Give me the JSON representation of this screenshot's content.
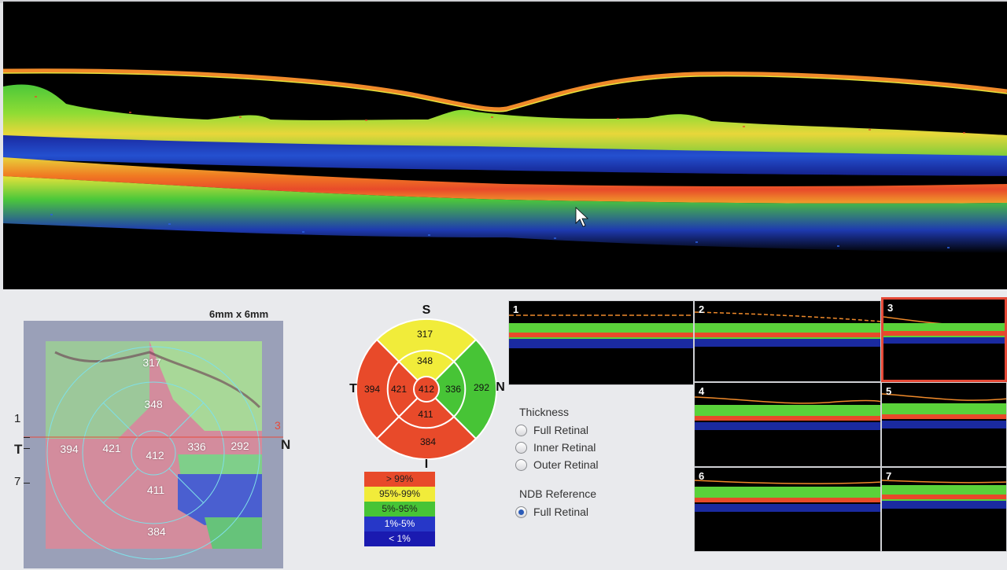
{
  "bscan": {
    "colors": {
      "vitreous": "#000000",
      "membrane": "#f08a2a",
      "layer_green": "#5ad23a",
      "layer_yellow": "#e6e23a",
      "layer_red": "#e84a2a",
      "deep_blue": "#1a2aa0"
    }
  },
  "thickness_map": {
    "size_label": "6mm x 6mm",
    "nasal_label": "N",
    "temporal_label": "T",
    "line_marker": "3",
    "scan_ticks": [
      "1",
      "7"
    ],
    "sectors": {
      "superior_outer": "317",
      "superior_inner": "348",
      "temporal_outer": "394",
      "temporal_inner": "421",
      "center": "412",
      "nasal_inner": "336",
      "nasal_outer": "292",
      "inferior_inner": "411",
      "inferior_outer": "384"
    }
  },
  "etdrs_chart": {
    "labels": {
      "superior": "S",
      "inferior": "I",
      "temporal": "T",
      "nasal": "N"
    },
    "values": {
      "superior_outer": "317",
      "superior_inner": "348",
      "temporal_outer": "394",
      "temporal_inner": "421",
      "center": "412",
      "nasal_inner": "336",
      "nasal_outer": "292",
      "inferior_inner": "411",
      "inferior_outer": "384"
    },
    "colors": {
      "red": "#e84a2a",
      "yellow": "#f1ec3a",
      "green": "#47c436"
    }
  },
  "legend": [
    {
      "label": "> 99%",
      "color": "#e84a2a"
    },
    {
      "label": "95%-99%",
      "color": "#f1ec3a"
    },
    {
      "label": "5%-95%",
      "color": "#47c436"
    },
    {
      "label": "1%-5%",
      "color": "#2637c8"
    },
    {
      "label": "< 1%",
      "color": "#1a1ab0"
    }
  ],
  "options": {
    "thickness_title": "Thickness",
    "thickness_options": [
      {
        "label": "Full Retinal",
        "selected": false
      },
      {
        "label": "Inner Retinal",
        "selected": false
      },
      {
        "label": "Outer Retinal",
        "selected": false
      }
    ],
    "ndb_title": "NDB Reference",
    "ndb_options": [
      {
        "label": "Full Retinal",
        "selected": true
      }
    ]
  },
  "thumbnails": [
    {
      "number": "1",
      "selected": false
    },
    {
      "number": "2",
      "selected": false
    },
    {
      "number": "3",
      "selected": true
    },
    {
      "number": "4",
      "selected": false
    },
    {
      "number": "5",
      "selected": false
    },
    {
      "number": "6",
      "selected": false
    },
    {
      "number": "7",
      "selected": false
    }
  ]
}
